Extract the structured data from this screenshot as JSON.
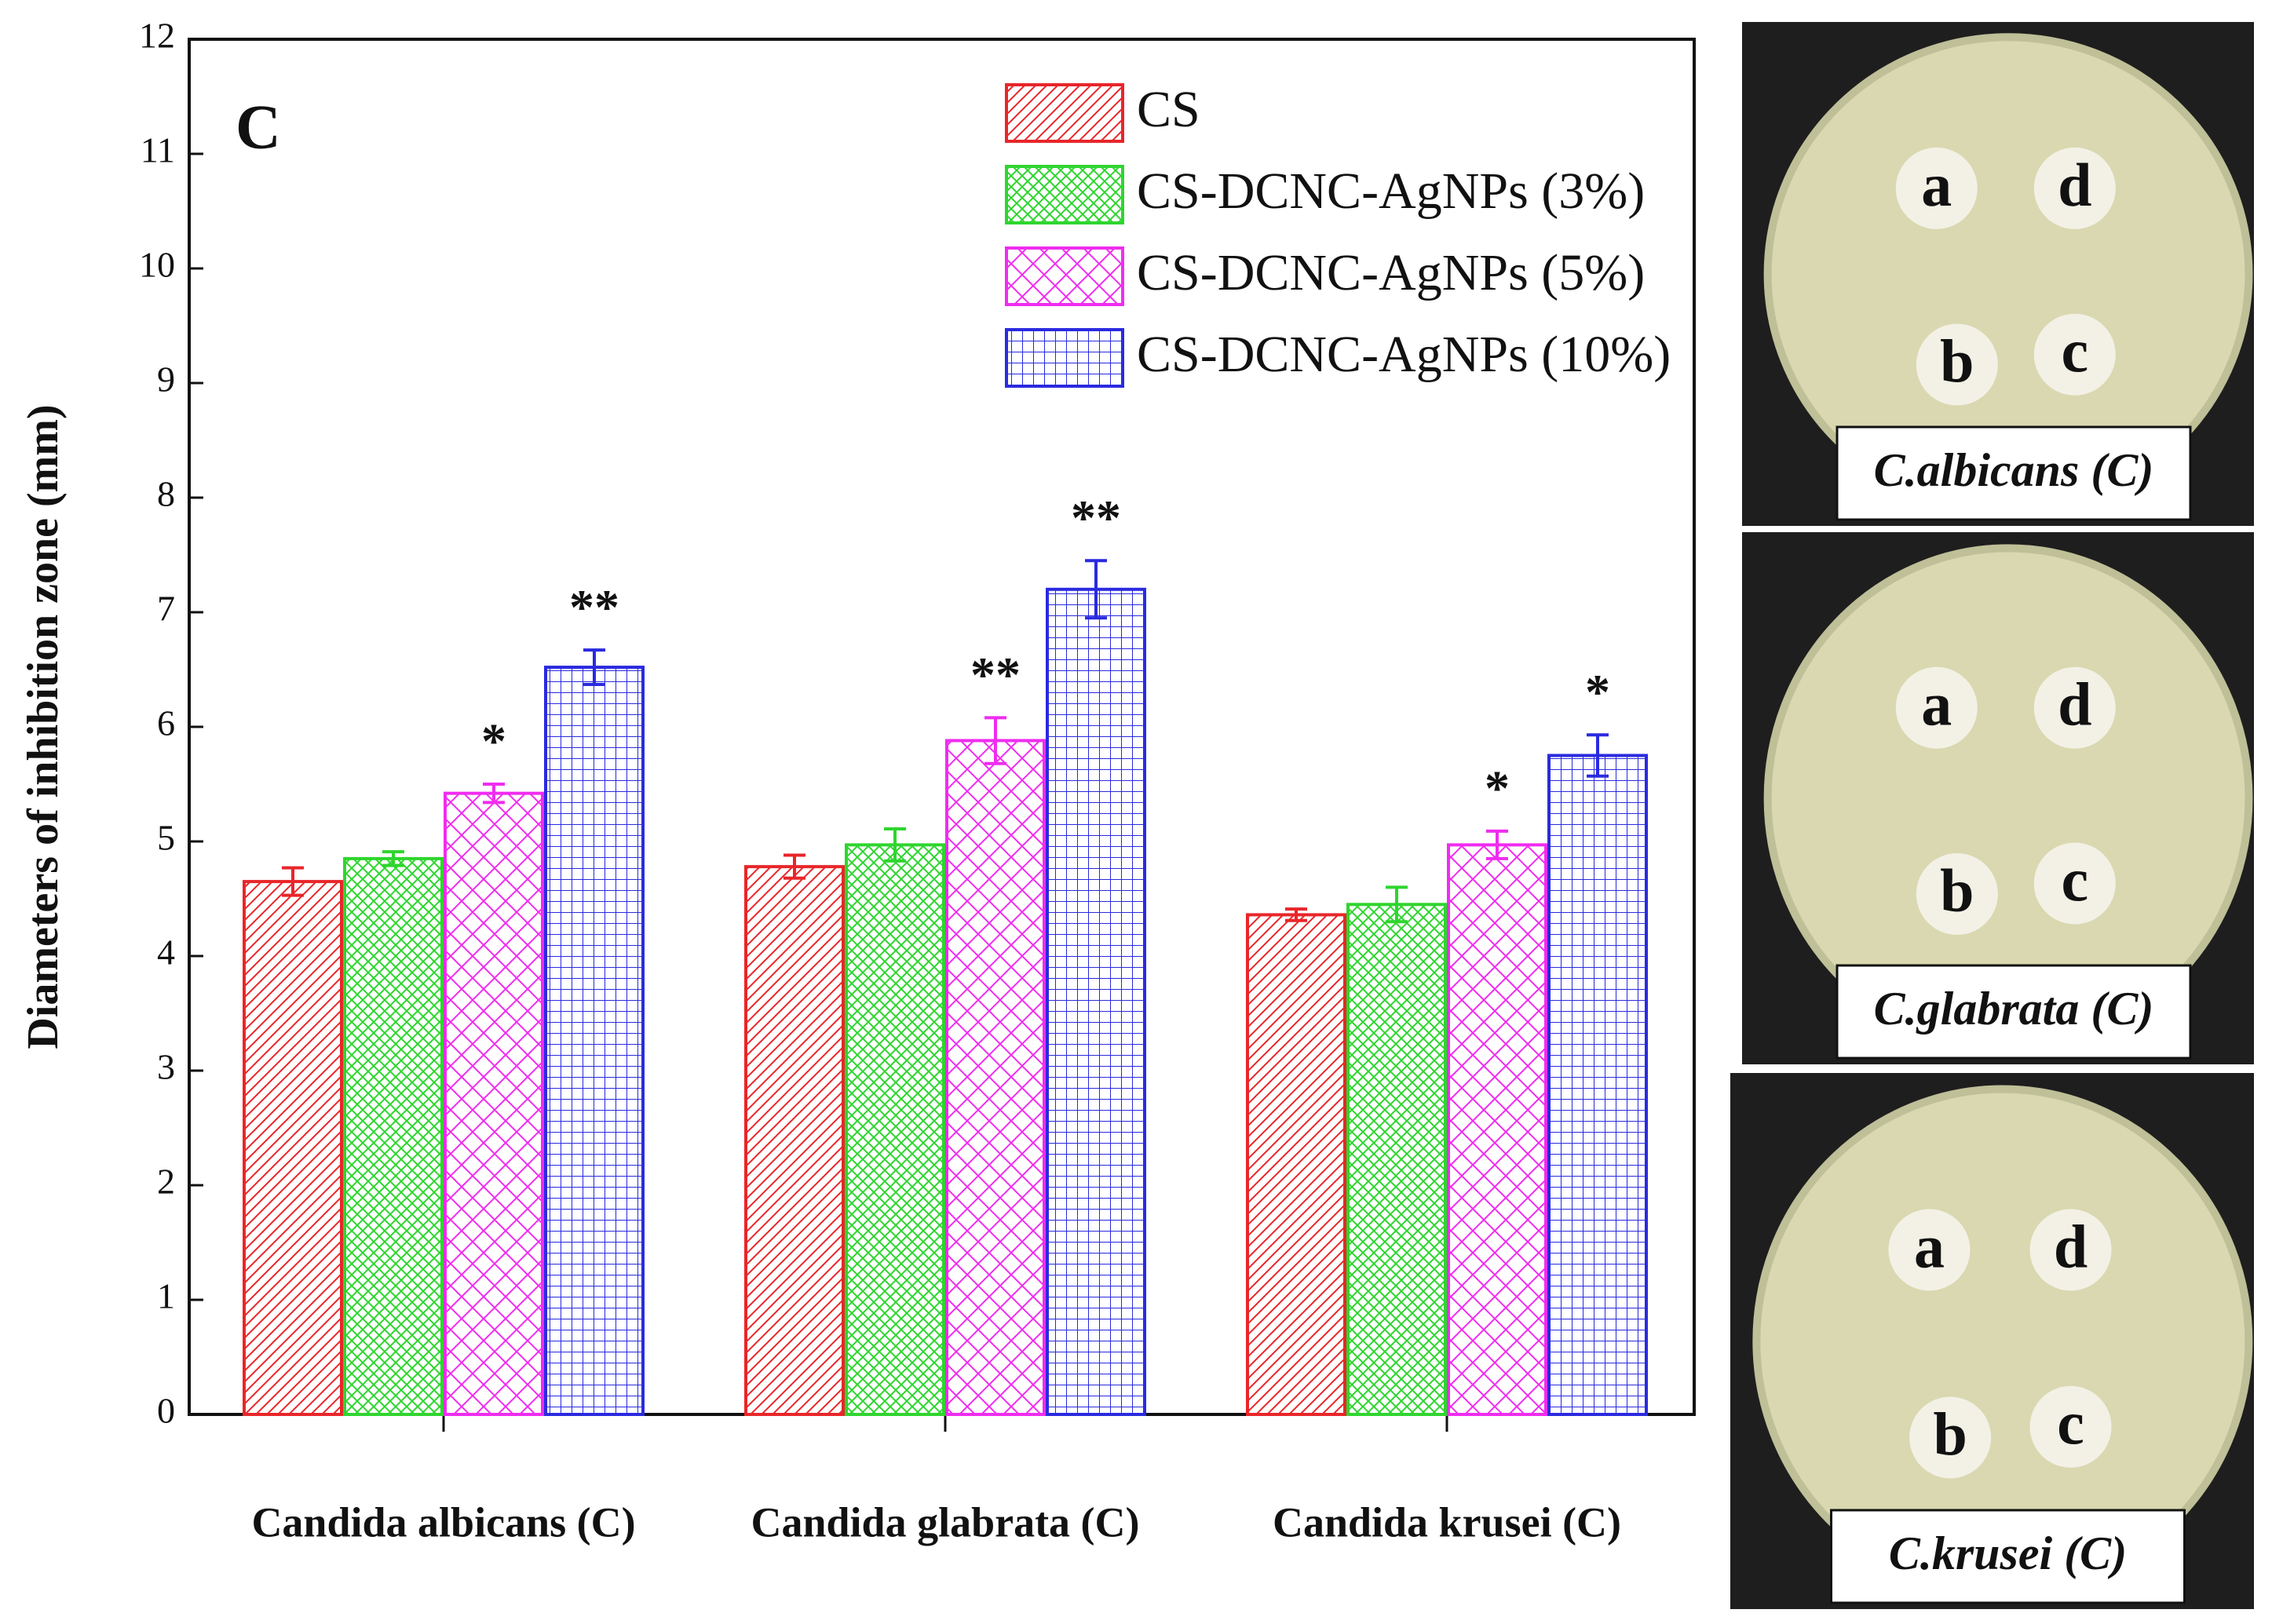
{
  "chart_data": {
    "type": "bar",
    "panel_label": "C",
    "y_label": "Diameters of inhibition zone (mm)",
    "categories": [
      "Candida albicans (C)",
      "Candida glabrata (C)",
      "Candida krusei (C)"
    ],
    "ylim": [
      0,
      12
    ],
    "yticks": [
      0,
      1,
      2,
      3,
      4,
      5,
      6,
      7,
      8,
      9,
      10,
      11,
      12
    ],
    "legend": "top-right",
    "series": [
      {
        "name": "CS",
        "color": "#e8262a",
        "hatch": "diagonal",
        "values": [
          4.65,
          4.78,
          4.36
        ],
        "errors": [
          0.12,
          0.1,
          0.05
        ],
        "significance": [
          null,
          null,
          null
        ]
      },
      {
        "name": "CS-DCNC-AgNPs (3%)",
        "color": "#2fd52f",
        "hatch": "cross",
        "values": [
          4.85,
          4.97,
          4.45
        ],
        "errors": [
          0.06,
          0.14,
          0.15
        ],
        "significance": [
          null,
          null,
          null
        ]
      },
      {
        "name": "CS-DCNC-AgNPs (5%)",
        "color": "#f02cf0",
        "hatch": "cross-wide",
        "values": [
          5.42,
          5.88,
          4.97
        ],
        "errors": [
          0.08,
          0.2,
          0.12
        ],
        "significance": [
          "*",
          "**",
          "*"
        ]
      },
      {
        "name": "CS-DCNC-AgNPs (10%)",
        "color": "#2a2ae0",
        "hatch": "grid",
        "values": [
          6.52,
          7.2,
          5.75
        ],
        "errors": [
          0.15,
          0.25,
          0.18
        ],
        "significance": [
          "**",
          "**",
          "*"
        ]
      }
    ]
  },
  "panels": [
    {
      "caption": "C.albicans (C)",
      "wells": [
        "a",
        "d",
        "b",
        "c"
      ]
    },
    {
      "caption": "C.glabrata (C)",
      "wells": [
        "a",
        "d",
        "b",
        "c"
      ]
    },
    {
      "caption": "C.krusei (C)",
      "wells": [
        "a",
        "d",
        "b",
        "c"
      ]
    }
  ]
}
